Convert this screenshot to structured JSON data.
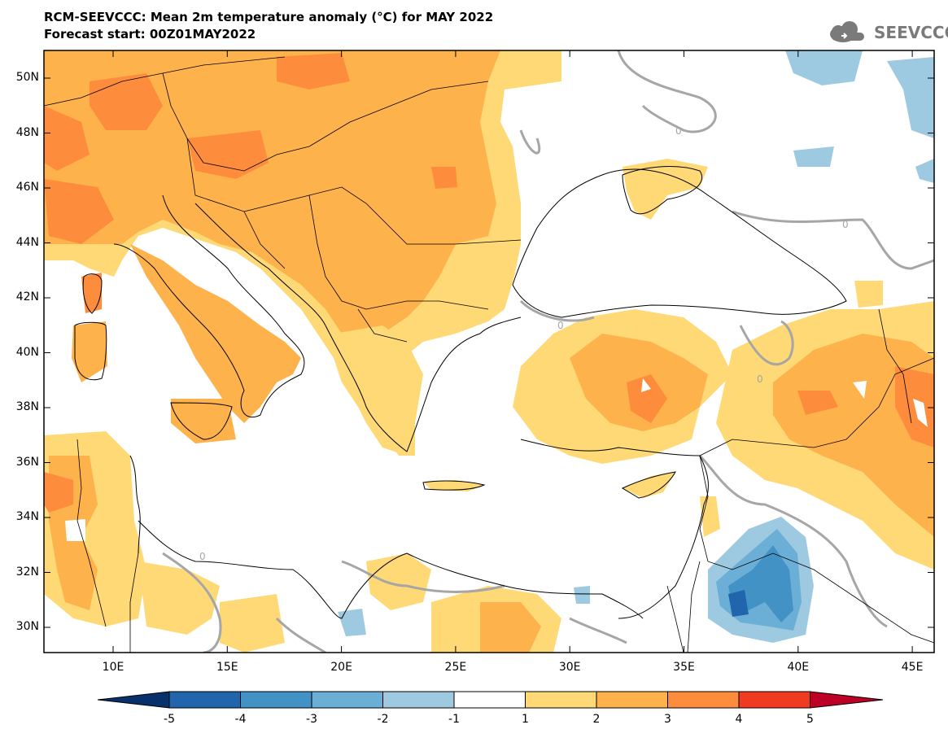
{
  "title": {
    "line1": "RCM-SEEVCCC: Mean 2m temperature anomaly (°C) for MAY 2022",
    "line2": "Forecast start: 00Z01MAY2022"
  },
  "logo": {
    "text": "SEEVCCC",
    "icon": "cloud-icon",
    "color": "#7a7a7a"
  },
  "map": {
    "extent": {
      "lon": [
        7,
        46
      ],
      "lat": [
        29,
        51
      ]
    },
    "lat_ticks": [
      "50N",
      "48N",
      "46N",
      "44N",
      "42N",
      "40N",
      "38N",
      "36N",
      "34N",
      "32N",
      "30N"
    ],
    "lon_ticks": [
      "10E",
      "15E",
      "20E",
      "25E",
      "30E",
      "35E",
      "40E",
      "45E"
    ],
    "contour_label": "0",
    "colors": {
      "anom_1_2": "#fed976",
      "anom_2_3": "#feb24c",
      "anom_3_4": "#fd8d3c",
      "anom_m1_m2": "#9ecae1",
      "anom_m2_m3": "#6baed6",
      "anom_m3_m4": "#4292c6",
      "anom_m4_m5": "#2166ac",
      "zero_contour": "#a6a6a6",
      "border": "#000000"
    }
  },
  "colorbar": {
    "labels": [
      "-5",
      "-4",
      "-3",
      "-2",
      "-1",
      "1",
      "2",
      "3",
      "4",
      "5"
    ],
    "colors": [
      "#08306b",
      "#2166ac",
      "#4292c6",
      "#6baed6",
      "#9ecae1",
      "#ffffff",
      "#fed976",
      "#feb24c",
      "#fd8d3c",
      "#f03b20",
      "#bd0026"
    ]
  }
}
